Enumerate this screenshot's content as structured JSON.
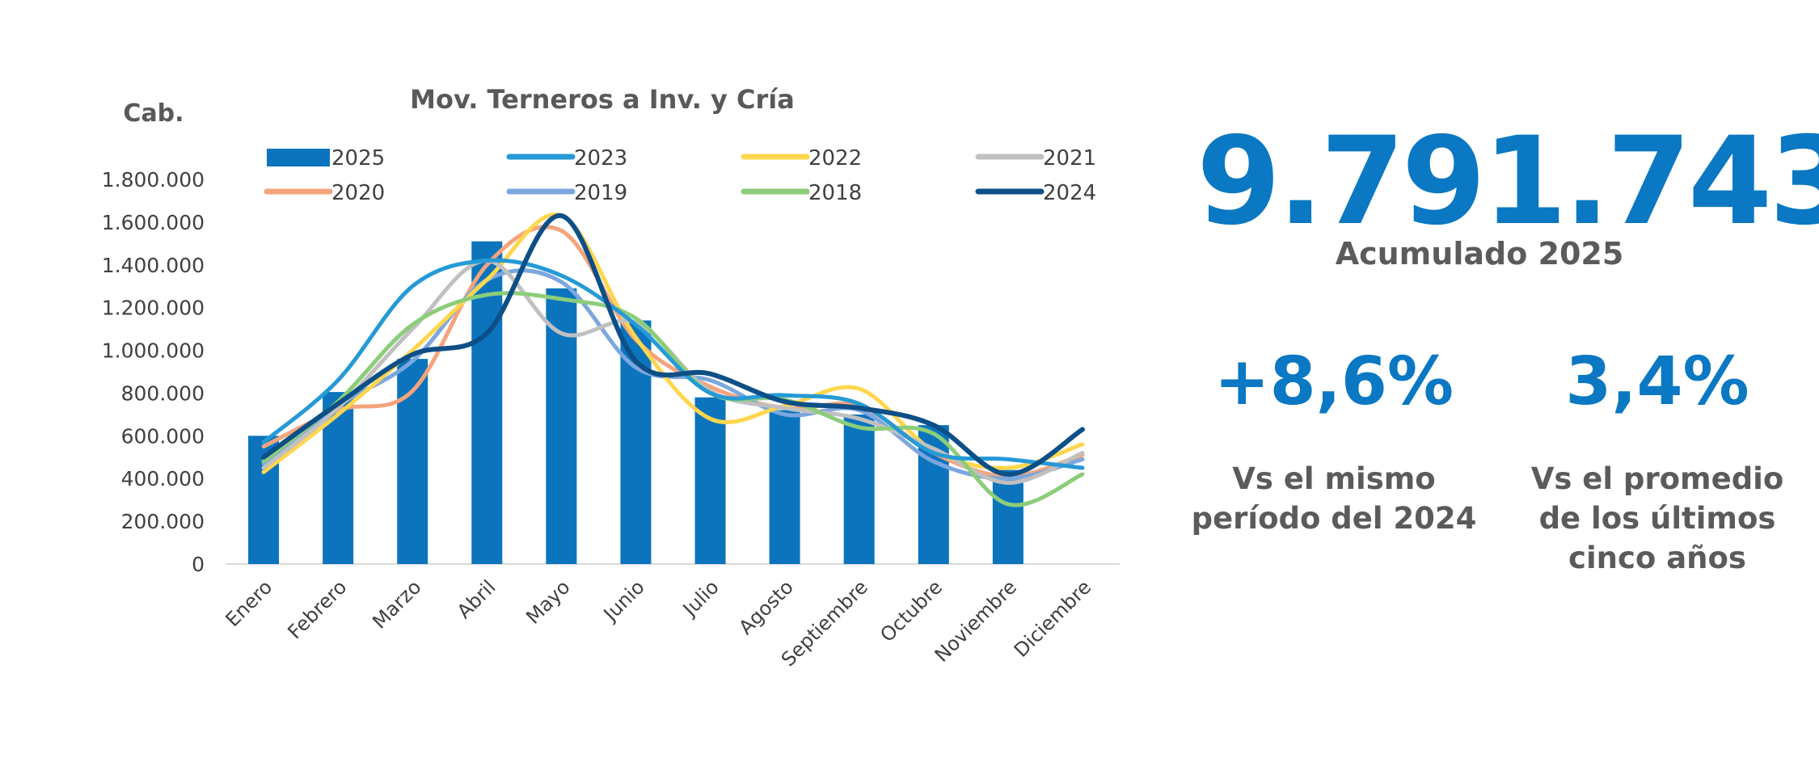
{
  "chart_data": {
    "type": "bar+line",
    "title": "Mov. Terneros a Inv. y Cría",
    "ylabel": "Cab.",
    "ylim": [
      0,
      1800000
    ],
    "yticks": [
      "0",
      "200.000",
      "400.000",
      "600.000",
      "800.000",
      "1.000.000",
      "1.200.000",
      "1.400.000",
      "1.600.000",
      "1.800.000"
    ],
    "ytick_values": [
      0,
      200000,
      400000,
      600000,
      800000,
      1000000,
      1200000,
      1400000,
      1600000,
      1800000
    ],
    "categories": [
      "Enero",
      "Febrero",
      "Marzo",
      "Abril",
      "Mayo",
      "Junio",
      "Julio",
      "Agosto",
      "Septiembre",
      "Octubre",
      "Noviembre",
      "Diciembre"
    ],
    "legend_order": [
      "2025",
      "2023",
      "2022",
      "2021",
      "2020",
      "2019",
      "2018",
      "2024"
    ],
    "bars": {
      "name": "2025",
      "color": "#0b74bd",
      "values": [
        600000,
        805000,
        960000,
        1510000,
        1290000,
        1140000,
        780000,
        720000,
        700000,
        650000,
        440000
      ]
    },
    "series": [
      {
        "name": "2020",
        "color": "#f4a47c",
        "values": [
          550000,
          720000,
          810000,
          1400000,
          1560000,
          1050000,
          830000,
          730000,
          740000,
          520000,
          410000,
          510000
        ]
      },
      {
        "name": "2019",
        "color": "#7ba7de",
        "values": [
          470000,
          740000,
          950000,
          1330000,
          1320000,
          920000,
          860000,
          700000,
          720000,
          480000,
          400000,
          490000
        ]
      },
      {
        "name": "2022",
        "color": "#ffd64d",
        "values": [
          430000,
          700000,
          1000000,
          1330000,
          1630000,
          1060000,
          680000,
          740000,
          820000,
          530000,
          450000,
          560000
        ]
      },
      {
        "name": "2021",
        "color": "#c0c0c0",
        "values": [
          450000,
          730000,
          1100000,
          1420000,
          1080000,
          1130000,
          810000,
          730000,
          680000,
          540000,
          380000,
          520000
        ]
      },
      {
        "name": "2018",
        "color": "#8ccd79",
        "values": [
          480000,
          760000,
          1120000,
          1260000,
          1240000,
          1150000,
          800000,
          770000,
          640000,
          610000,
          280000,
          420000
        ]
      },
      {
        "name": "2023",
        "color": "#259ad6",
        "values": [
          570000,
          860000,
          1300000,
          1420000,
          1350000,
          1120000,
          800000,
          790000,
          750000,
          520000,
          490000,
          450000
        ]
      },
      {
        "name": "2024",
        "color": "#0d4f87",
        "values": [
          500000,
          750000,
          980000,
          1080000,
          1630000,
          950000,
          890000,
          760000,
          730000,
          650000,
          420000,
          630000
        ]
      }
    ]
  },
  "kpis": {
    "total_value": "9.791.743",
    "total_label": "Acumulado 2025",
    "yoy_value": "+8,6%",
    "yoy_label_lines": [
      "Vs el mismo",
      "período del 2024"
    ],
    "avg_value": "3,4%",
    "avg_label_lines": [
      "Vs el promedio",
      "de los últimos",
      "cinco años"
    ]
  }
}
